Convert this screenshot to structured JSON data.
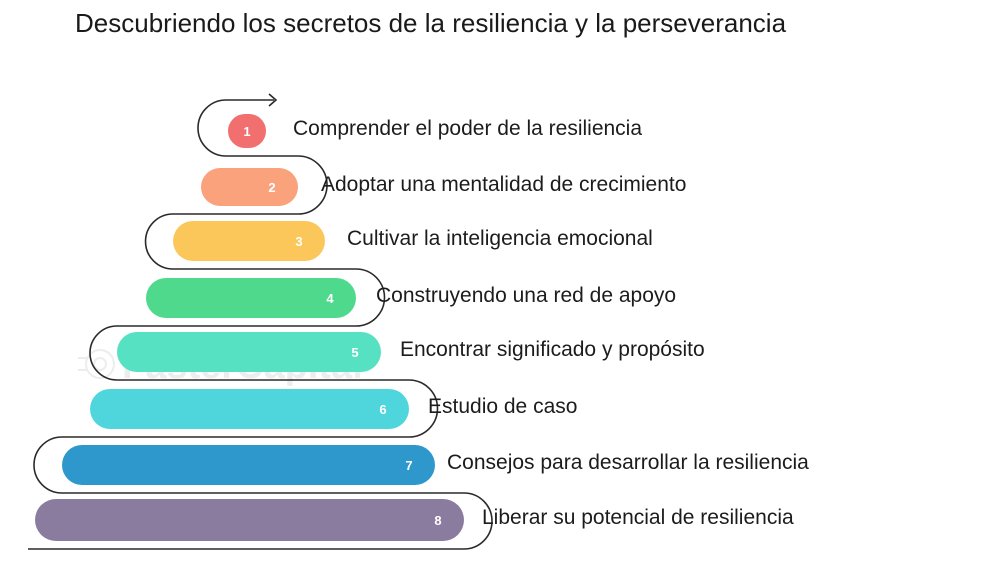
{
  "title": "Descubriendo los secretos de la resiliencia y la perseverancia",
  "watermark": "FasterCapital",
  "steps": [
    {
      "number": "1",
      "label": "Comprender el poder de la resiliencia",
      "color": "#f26f6f"
    },
    {
      "number": "2",
      "label": "Adoptar una mentalidad de crecimiento",
      "color": "#f9a27c"
    },
    {
      "number": "3",
      "label": "Cultivar la inteligencia emocional",
      "color": "#fcc75a"
    },
    {
      "number": "4",
      "label": "Construyendo una red de apoyo",
      "color": "#4ed98c"
    },
    {
      "number": "5",
      "label": "Encontrar significado y propósito",
      "color": "#56e2c2"
    },
    {
      "number": "6",
      "label": "Estudio de caso",
      "color": "#4fd6dc"
    },
    {
      "number": "7",
      "label": "Consejos para desarrollar la resiliencia",
      "color": "#2e98cc"
    },
    {
      "number": "8",
      "label": "Liberar su potencial de resiliencia",
      "color": "#8a7c9e"
    }
  ]
}
